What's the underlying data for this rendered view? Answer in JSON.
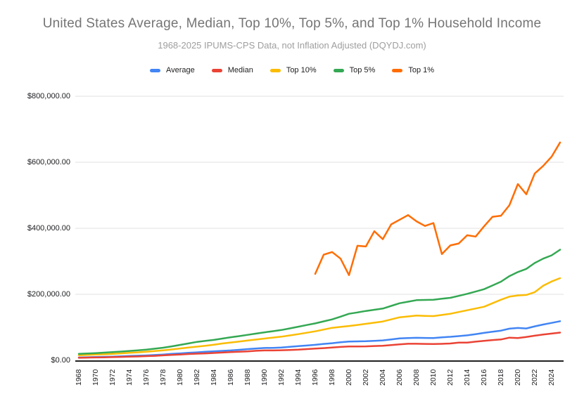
{
  "chart": {
    "title": "United States Average, Median, Top 10%, Top 5%, and Top 1% Household Income",
    "subtitle": "1968-2025 IPUMS-CPS Data, not Inflation Adjusted (DQYDJ.com)"
  },
  "colors": {
    "title_text": "#757575",
    "subtitle_text": "#9e9e9e",
    "tick_text": "#202124",
    "gridline": "#e0e0e0",
    "axis_line": "#212121",
    "background": "#ffffff"
  },
  "chart_data": {
    "type": "line",
    "title": "United States Average, Median, Top 10%, Top 5%, and Top 1% Household Income",
    "subtitle": "1968-2025 IPUMS-CPS Data, not Inflation Adjusted (DQYDJ.com)",
    "xlabel": "",
    "ylabel": "",
    "grid": "horizontal",
    "legend_position": "top",
    "x_year_start": 1968,
    "x_year_end": 2025,
    "x_tick_labels": [
      "1968",
      "1970",
      "1972",
      "1974",
      "1976",
      "1978",
      "1980",
      "1982",
      "1984",
      "1986",
      "1988",
      "1990",
      "1992",
      "1994",
      "1996",
      "1998",
      "2000",
      "2002",
      "2004",
      "2006",
      "2008",
      "2010",
      "2012",
      "2014",
      "2016",
      "2018",
      "2020",
      "2022",
      "2024"
    ],
    "ylim": [
      0,
      800000
    ],
    "y_ticks": [
      {
        "value": 0,
        "label": "$0.00"
      },
      {
        "value": 200000,
        "label": "$200,000.00"
      },
      {
        "value": 400000,
        "label": "$400,000.00"
      },
      {
        "value": 600000,
        "label": "$600,000.00"
      },
      {
        "value": 800000,
        "label": "$800,000.00"
      }
    ],
    "series": [
      {
        "name": "Average",
        "color": "#4285F4",
        "values": [
          8800,
          9400,
          9900,
          10600,
          11300,
          12200,
          13100,
          14000,
          14900,
          16100,
          17700,
          19600,
          21100,
          22800,
          24300,
          25900,
          27500,
          28700,
          30000,
          32000,
          34000,
          36000,
          37400,
          37800,
          38800,
          41000,
          43100,
          45000,
          47100,
          49700,
          51900,
          54700,
          57000,
          57400,
          57900,
          59100,
          60500,
          63300,
          66600,
          67600,
          68400,
          67900,
          67500,
          69700,
          71300,
          73500,
          75700,
          79300,
          83100,
          86500,
          90000,
          96000,
          98000,
          96500,
          103000,
          108500,
          113500,
          118500
        ]
      },
      {
        "name": "Median",
        "color": "#EA4335",
        "values": [
          7700,
          8400,
          8700,
          9000,
          9700,
          10500,
          11200,
          11800,
          12700,
          13600,
          15100,
          16500,
          17700,
          19100,
          20200,
          21000,
          22400,
          23600,
          24900,
          26100,
          27200,
          28900,
          29900,
          30100,
          30600,
          31200,
          32300,
          34100,
          35500,
          37000,
          38900,
          40700,
          42000,
          42200,
          42400,
          43300,
          44300,
          46300,
          48200,
          50200,
          50300,
          49800,
          49300,
          50100,
          51000,
          53600,
          53700,
          56500,
          59000,
          61400,
          63200,
          68700,
          67500,
          70800,
          74600,
          78000,
          81000,
          84000
        ]
      },
      {
        "name": "Top 10%",
        "color": "#FBBC04",
        "values": [
          15500,
          16400,
          17400,
          18400,
          19700,
          21100,
          22800,
          24300,
          26000,
          28000,
          30500,
          33000,
          36000,
          38700,
          41500,
          44300,
          47500,
          51000,
          54000,
          57000,
          60000,
          63000,
          66000,
          68900,
          71700,
          75500,
          79400,
          83600,
          87900,
          93100,
          98500,
          101200,
          104000,
          107300,
          110600,
          114100,
          117700,
          124000,
          130400,
          133000,
          135500,
          134700,
          134000,
          137500,
          141000,
          146300,
          151700,
          157000,
          162400,
          173000,
          183700,
          193000,
          196500,
          198000,
          206500,
          226000,
          239000,
          249000
        ]
      },
      {
        "name": "Top 5%",
        "color": "#34A853",
        "values": [
          19500,
          20700,
          22000,
          23400,
          25000,
          26700,
          28500,
          30400,
          32500,
          35300,
          38300,
          42400,
          46800,
          51300,
          56000,
          59000,
          62000,
          66000,
          70000,
          73500,
          77200,
          81000,
          85000,
          88400,
          92000,
          96900,
          102000,
          107000,
          112000,
          118000,
          124000,
          132400,
          141000,
          145200,
          149600,
          153100,
          156800,
          164800,
          173000,
          177600,
          182300,
          183000,
          183700,
          186500,
          189400,
          195400,
          201500,
          208400,
          215600,
          226800,
          238300,
          255000,
          267400,
          277000,
          295000,
          308000,
          318000,
          335000
        ]
      },
      {
        "name": "Top 1%",
        "color": "#FF6D01",
        "values": [
          null,
          null,
          null,
          null,
          null,
          null,
          null,
          null,
          null,
          null,
          null,
          null,
          null,
          null,
          null,
          null,
          null,
          null,
          null,
          null,
          null,
          null,
          null,
          null,
          null,
          null,
          null,
          null,
          262000,
          320000,
          328000,
          308000,
          258000,
          347000,
          345000,
          391000,
          367000,
          412000,
          426000,
          440000,
          421000,
          407000,
          416000,
          322000,
          348000,
          354000,
          379000,
          375000,
          406000,
          435000,
          438000,
          470000,
          534000,
          503000,
          566000,
          589000,
          617000,
          660000
        ]
      }
    ]
  }
}
